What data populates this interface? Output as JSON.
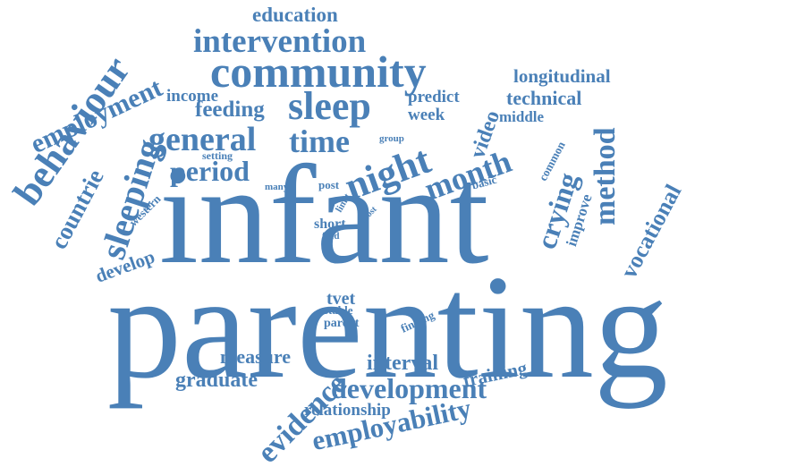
{
  "color": "#4a80b7",
  "words": {
    "parenting": "parenting",
    "infant": "infant",
    "community": "community",
    "intervention": "intervention",
    "education": "education",
    "employment": "employment",
    "behaviour": "behaviour",
    "sleeping": "sleeping",
    "countrie": "countrie",
    "sleep": "sleep",
    "general": "general",
    "time": "time",
    "night": "night",
    "month": "month",
    "period": "period",
    "feeding": "feeding",
    "income": "income",
    "predict": "predict",
    "week": "week",
    "video": "video",
    "longitudinal": "longitudinal",
    "technical": "technical",
    "middle": "middle",
    "method": "method",
    "crying": "crying",
    "common": "common",
    "improve": "improve",
    "basic": "basic",
    "vocational": "vocational",
    "group": "group",
    "setting": "setting",
    "western": "western",
    "many": "many",
    "post": "post",
    "limit": "limit",
    "most": "most",
    "short": "short",
    "feed": "feed",
    "develop": "develop",
    "tvet": "tvet",
    "stable": "stable",
    "parent": "parent",
    "finding": "finding",
    "measure": "measure",
    "graduate": "graduate",
    "evidence": "evidence",
    "interval": "interval",
    "training": "training",
    "development": "development",
    "relationship": "relationship",
    "employability": "employability"
  }
}
